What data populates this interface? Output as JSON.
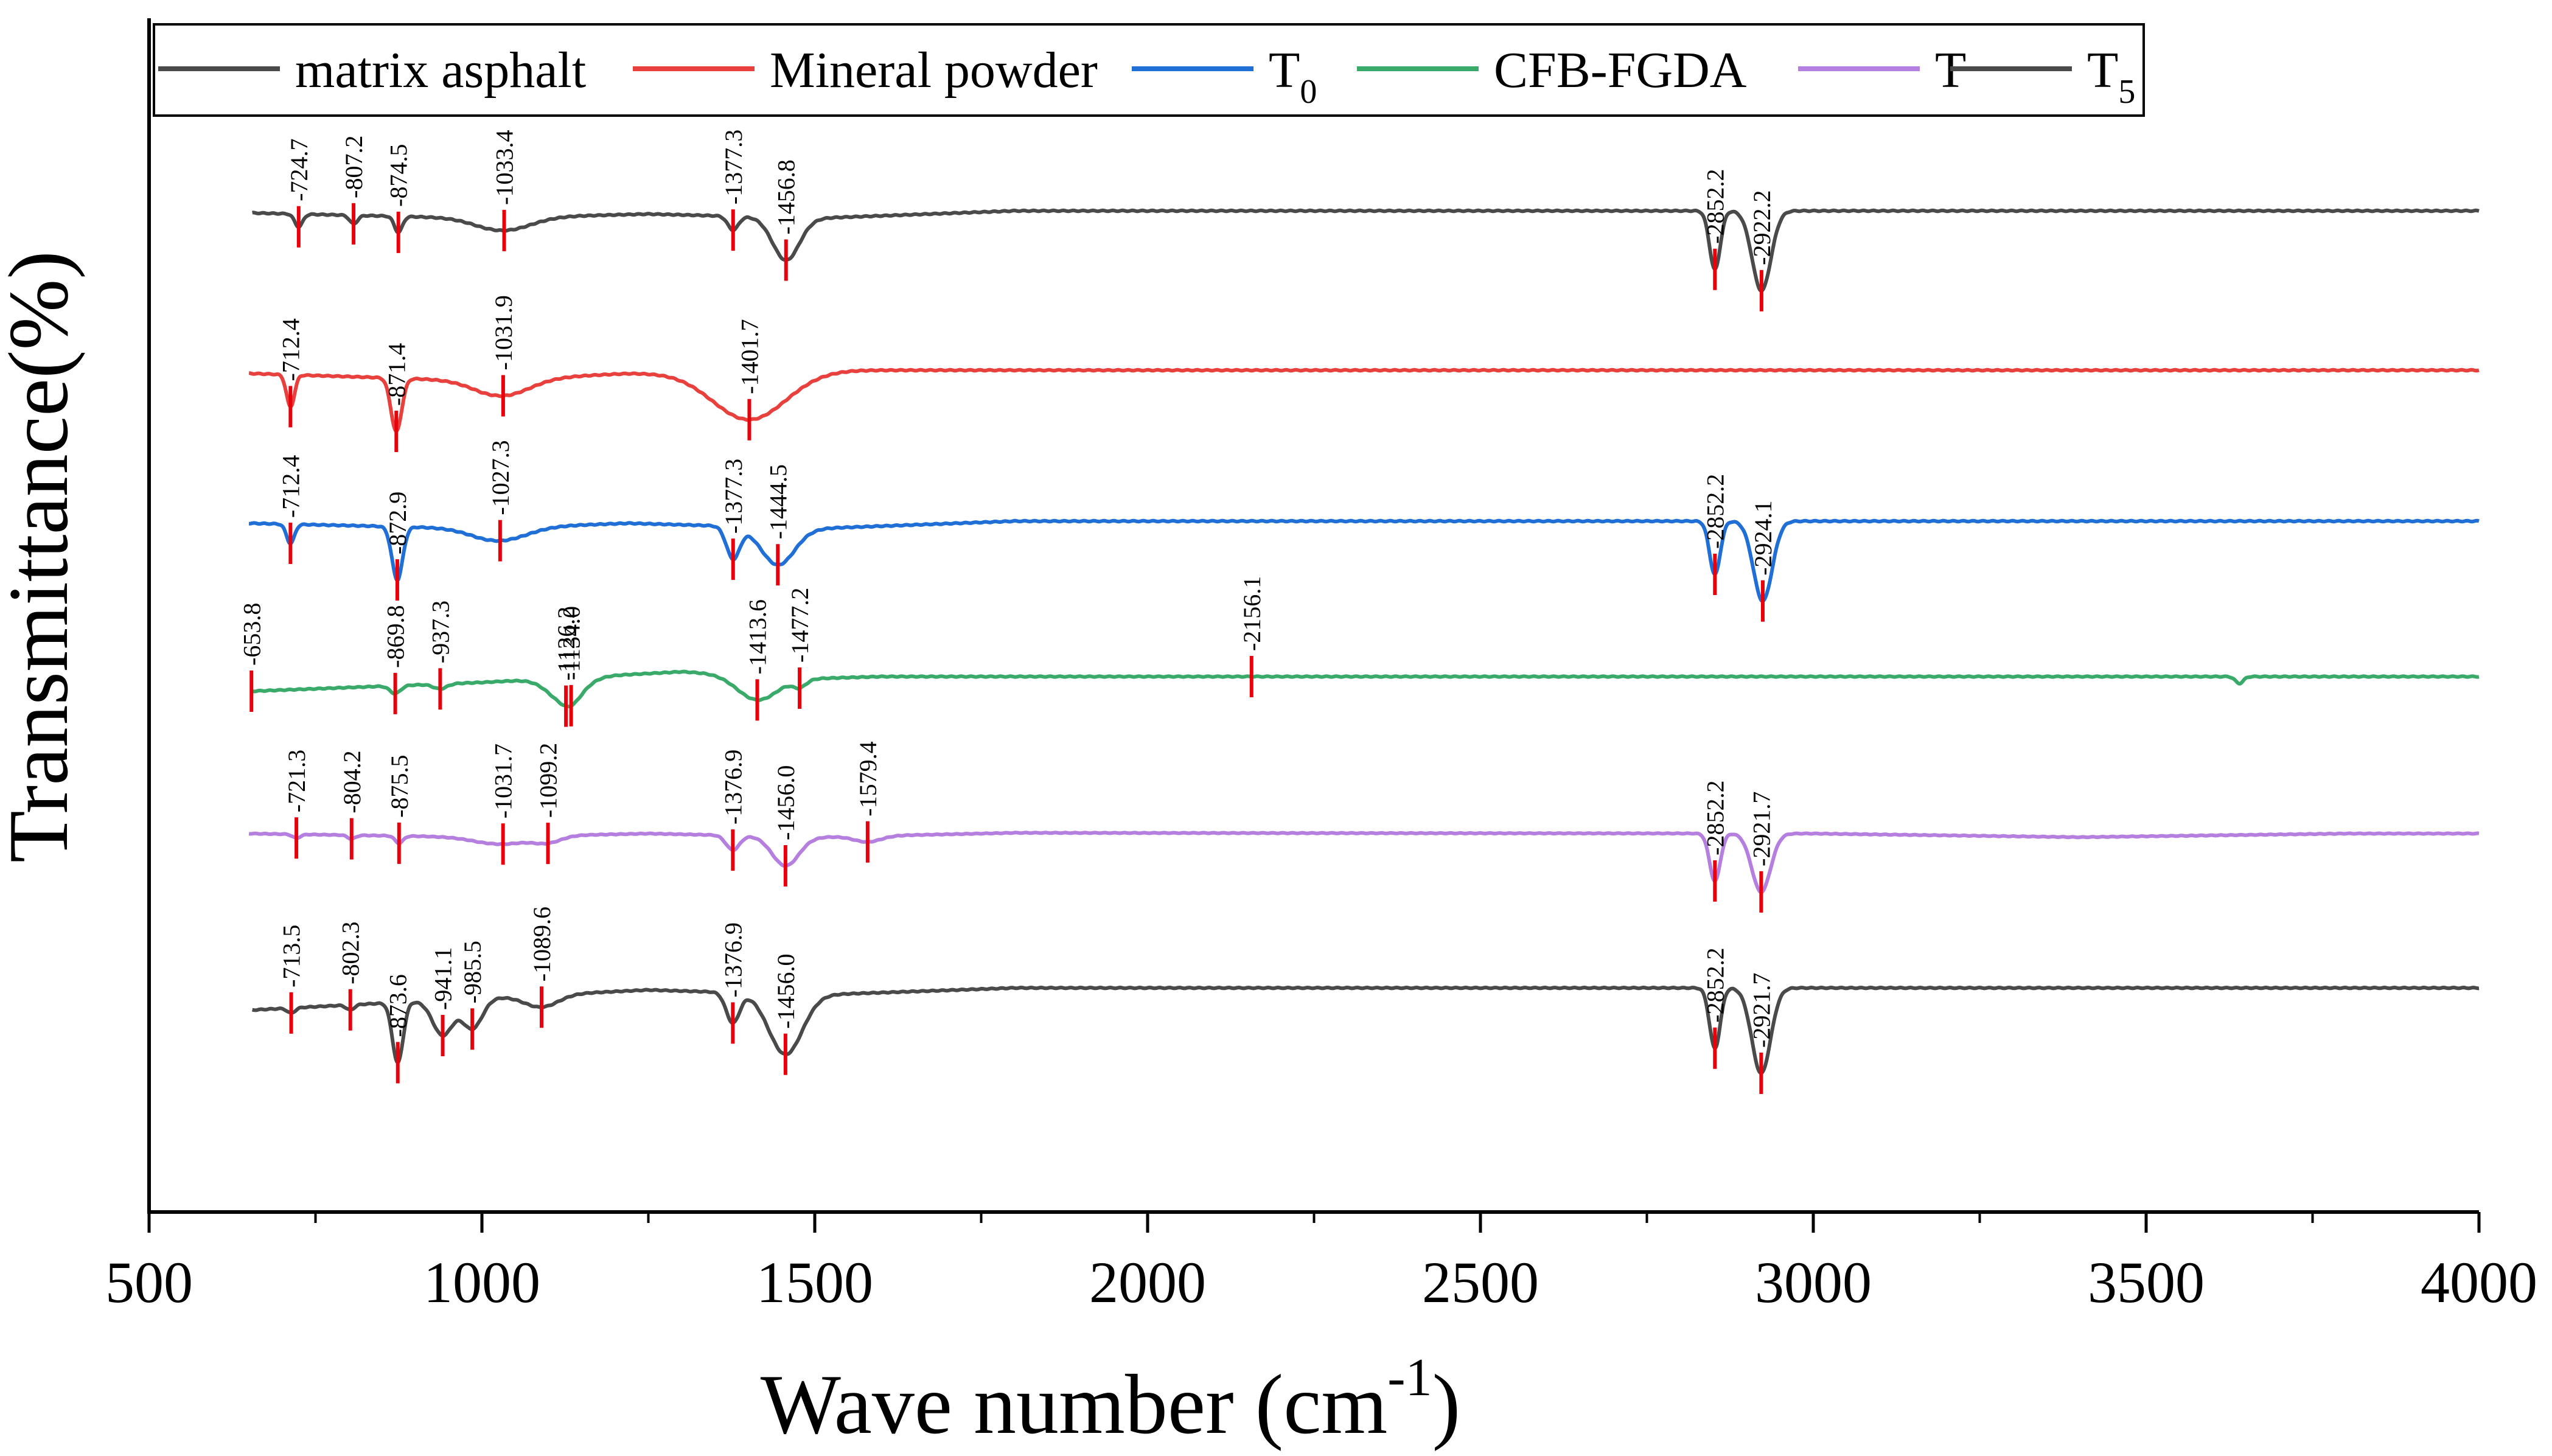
{
  "chart_data": {
    "type": "line",
    "title": "",
    "xlabel": "Wave number (cm",
    "xlabel_sup": "-1",
    "xlabel_end": ")",
    "ylabel": "Transmittance(%)",
    "xlim": [
      500,
      4000
    ],
    "x_ticks": [
      "500",
      "1000",
      "1500",
      "2000",
      "2500",
      "3000",
      "3500",
      "4000"
    ],
    "legend_position": "top",
    "legend": [
      {
        "label": "matrix asphalt",
        "sub": "",
        "color": "#4a4a4a"
      },
      {
        "label": "Mineral powder",
        "sub": "",
        "color": "#e8403c"
      },
      {
        "label": "T",
        "sub": "0",
        "color": "#1f6fd6"
      },
      {
        "label": "CFB-FGDA",
        "sub": "",
        "color": "#3aaa6a"
      },
      {
        "label": "T",
        "sub": "",
        "color": "#b57fe0"
      },
      {
        "label": "T",
        "sub": "5",
        "color": "#4a4a4a"
      }
    ],
    "series": [
      {
        "name": "matrix asphalt",
        "color": "#4a4a4a",
        "x_start": 655,
        "baseline": 1.0,
        "trend": [
          [
            655,
            0.0
          ],
          [
            1000,
            0.05
          ],
          [
            1250,
            0.01
          ],
          [
            1500,
            0.05
          ],
          [
            1800,
            -0.02
          ],
          [
            4000,
            -0.02
          ]
        ],
        "bands": [
          [
            724.7,
            0.12,
            6
          ],
          [
            807.2,
            0.08,
            6
          ],
          [
            874.5,
            0.15,
            6
          ],
          [
            1033.4,
            0.12,
            40
          ],
          [
            1377.3,
            0.13,
            8
          ],
          [
            1456.8,
            0.4,
            20
          ],
          [
            2852.2,
            0.55,
            8
          ],
          [
            2922.2,
            0.75,
            14
          ]
        ],
        "labels": [
          {
            "x": 724.7,
            "text": "-724.7"
          },
          {
            "x": 807.2,
            "text": "-807.2"
          },
          {
            "x": 874.5,
            "text": "-874.5"
          },
          {
            "x": 1033.4,
            "text": "-1033.4"
          },
          {
            "x": 1377.3,
            "text": "-1377.3"
          },
          {
            "x": 1456.8,
            "text": "-1456.8"
          },
          {
            "x": 2852.2,
            "text": "-2852.2"
          },
          {
            "x": 2922.2,
            "text": "-2922.2"
          }
        ]
      },
      {
        "name": "Mineral powder",
        "color": "#e8403c",
        "x_start": 650,
        "baseline": 1.0,
        "trend": [
          [
            650,
            0.05
          ],
          [
            1000,
            0.12
          ],
          [
            1220,
            0.05
          ],
          [
            1560,
            0.02
          ],
          [
            4000,
            0.02
          ]
        ],
        "bands": [
          [
            712.4,
            0.3,
            6
          ],
          [
            871.4,
            0.5,
            8
          ],
          [
            1031.9,
            0.15,
            40
          ],
          [
            1401.7,
            0.45,
            55
          ]
        ],
        "labels": [
          {
            "x": 712.4,
            "text": "-712.4"
          },
          {
            "x": 871.4,
            "text": "-871.4"
          },
          {
            "x": 1031.9,
            "text": "-1031.9"
          },
          {
            "x": 1401.7,
            "text": "-1401.7"
          }
        ]
      },
      {
        "name": "T0",
        "color": "#1f6fd6",
        "x_start": 650,
        "baseline": 1.0,
        "trend": [
          [
            650,
            0.0
          ],
          [
            1000,
            0.05
          ],
          [
            1220,
            0.0
          ],
          [
            1500,
            0.05
          ],
          [
            1800,
            -0.02
          ],
          [
            4000,
            -0.02
          ]
        ],
        "bands": [
          [
            712.4,
            0.18,
            6
          ],
          [
            872.9,
            0.5,
            8
          ],
          [
            1027.3,
            0.12,
            40
          ],
          [
            1377.3,
            0.3,
            10
          ],
          [
            1444.5,
            0.35,
            25
          ],
          [
            2852.2,
            0.5,
            8
          ],
          [
            2924.1,
            0.75,
            14
          ]
        ],
        "labels": [
          {
            "x": 712.4,
            "text": "-712.4"
          },
          {
            "x": 872.9,
            "text": "-872.9"
          },
          {
            "x": 1027.3,
            "text": "-1027.3"
          },
          {
            "x": 1377.3,
            "text": "-1377.3"
          },
          {
            "x": 1444.5,
            "text": "-1444.5"
          },
          {
            "x": 2852.2,
            "text": "-2852.2"
          },
          {
            "x": 2924.1,
            "text": "-2924.1"
          }
        ]
      },
      {
        "name": "CFB-FGDA",
        "color": "#3aaa6a",
        "x_start": 655,
        "baseline": 1.0,
        "trend": [
          [
            655,
            0.15
          ],
          [
            1000,
            0.06
          ],
          [
            1300,
            -0.05
          ],
          [
            1500,
            0.02
          ],
          [
            1600,
            0.0
          ],
          [
            4000,
            0.0
          ]
        ],
        "bands": [
          [
            869.8,
            0.08,
            8
          ],
          [
            937.3,
            0.05,
            10
          ],
          [
            1126.2,
            0.25,
            25
          ],
          [
            1134.0,
            0.05,
            12
          ],
          [
            1413.6,
            0.25,
            30
          ],
          [
            1477.2,
            0.08,
            10
          ],
          [
            3640,
            0.07,
            6
          ]
        ],
        "labels": [
          {
            "x": 653.8,
            "text": "-653.8"
          },
          {
            "x": 869.8,
            "text": "-869.8"
          },
          {
            "x": 937.3,
            "text": "-937.3"
          },
          {
            "x": 1126.2,
            "text": "-1126.2"
          },
          {
            "x": 1134.0,
            "text": "-1134.0"
          },
          {
            "x": 1413.6,
            "text": "-1413.6"
          },
          {
            "x": 1477.2,
            "text": "-1477.2"
          },
          {
            "x": 2156.1,
            "text": "-2156.1"
          }
        ]
      },
      {
        "name": "T",
        "color": "#b57fe0",
        "x_start": 650,
        "baseline": 1.0,
        "trend": [
          [
            650,
            0.0
          ],
          [
            1000,
            0.05
          ],
          [
            1250,
            0.0
          ],
          [
            1500,
            0.05
          ],
          [
            1800,
            -0.01
          ],
          [
            3000,
            0.0
          ],
          [
            3400,
            0.05
          ],
          [
            3800,
            0.0
          ],
          [
            4000,
            0.0
          ]
        ],
        "bands": [
          [
            721.3,
            0.05,
            6
          ],
          [
            804.2,
            0.05,
            6
          ],
          [
            875.5,
            0.1,
            6
          ],
          [
            1031.7,
            0.1,
            40
          ],
          [
            1099.2,
            0.08,
            20
          ],
          [
            1376.9,
            0.2,
            10
          ],
          [
            1456.0,
            0.4,
            20
          ],
          [
            1579.4,
            0.08,
            20
          ],
          [
            2852.2,
            0.65,
            8
          ],
          [
            2921.7,
            0.8,
            14
          ]
        ],
        "labels": [
          {
            "x": 721.3,
            "text": "-721.3"
          },
          {
            "x": 804.2,
            "text": "-804.2"
          },
          {
            "x": 875.5,
            "text": "-875.5"
          },
          {
            "x": 1031.7,
            "text": "-1031.7"
          },
          {
            "x": 1099.2,
            "text": "-1099.2"
          },
          {
            "x": 1376.9,
            "text": "-1376.9"
          },
          {
            "x": 1456.0,
            "text": "-1456.0"
          },
          {
            "x": 1579.4,
            "text": "-1579.4"
          },
          {
            "x": 2852.2,
            "text": "-2852.2"
          },
          {
            "x": 2921.7,
            "text": "-2921.7"
          }
        ]
      },
      {
        "name": "T5",
        "color": "#4a4a4a",
        "x_start": 655,
        "baseline": 1.0,
        "trend": [
          [
            655,
            0.2
          ],
          [
            1000,
            0.08
          ],
          [
            1250,
            0.0
          ],
          [
            1500,
            0.05
          ],
          [
            1800,
            -0.02
          ],
          [
            4000,
            -0.02
          ]
        ],
        "bands": [
          [
            713.5,
            0.05,
            6
          ],
          [
            802.3,
            0.05,
            6
          ],
          [
            873.6,
            0.6,
            8
          ],
          [
            941.1,
            0.35,
            15
          ],
          [
            985.5,
            0.3,
            15
          ],
          [
            1089.6,
            0.12,
            25
          ],
          [
            1376.9,
            0.3,
            10
          ],
          [
            1456.0,
            0.6,
            25
          ],
          [
            2852.2,
            0.6,
            8
          ],
          [
            2921.7,
            0.85,
            14
          ]
        ],
        "labels": [
          {
            "x": 713.5,
            "text": "-713.5"
          },
          {
            "x": 802.3,
            "text": "-802.3"
          },
          {
            "x": 873.6,
            "text": "-873.6"
          },
          {
            "x": 941.1,
            "text": "-941.1"
          },
          {
            "x": 985.5,
            "text": "-985.5"
          },
          {
            "x": 1089.6,
            "text": "-1089.6"
          },
          {
            "x": 1376.9,
            "text": "-1376.9"
          },
          {
            "x": 1456.0,
            "text": "-1456.0"
          },
          {
            "x": 2852.2,
            "text": "-2852.2"
          },
          {
            "x": 2921.7,
            "text": "-2921.7"
          }
        ]
      }
    ]
  }
}
